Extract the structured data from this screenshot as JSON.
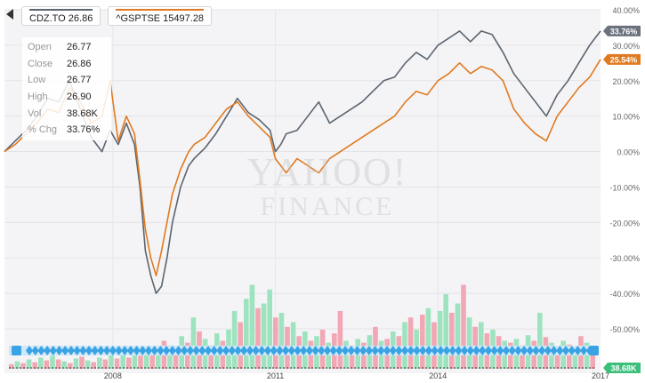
{
  "legend": {
    "cdz_label": "CDZ.TO 26.86",
    "gsptse_label": "^GSPTSE 15497.28"
  },
  "tooltip": {
    "rows": [
      {
        "label": "Open",
        "value": "26.77"
      },
      {
        "label": "Close",
        "value": "26.86"
      },
      {
        "label": "Low",
        "value": "26.77"
      },
      {
        "label": "High",
        "value": "26.90"
      },
      {
        "label": "Vol",
        "value": "38.68K"
      },
      {
        "label": "% Chg",
        "value": "33.76%"
      }
    ]
  },
  "watermark": {
    "line1": "YAHOO!",
    "line2": "FINANCE"
  },
  "colors": {
    "cdz": "#5b6470",
    "gsptse": "#e07a20",
    "vol_up": "#9ee3bf",
    "vol_down": "#f2a7b4",
    "navigator": "#3aa3e3"
  },
  "chart_data": {
    "type": "line",
    "title": "",
    "xlabel": "",
    "ylabel": "",
    "x_ticks": [
      "2008",
      "2011",
      "2014",
      "2017"
    ],
    "y_ticks": [
      "40.00%",
      "30.00%",
      "20.00%",
      "10.00%",
      "0.00%",
      "-10.00%",
      "-20.00%",
      "-30.00%",
      "-40.00%",
      "-50.00%"
    ],
    "ylim": [
      -50,
      40
    ],
    "xlim": [
      2006.0,
      2017.0
    ],
    "grid": true,
    "legend_position": "top-left",
    "series": [
      {
        "name": "CDZ.TO",
        "last_label": "33.76%",
        "x": [
          2006.0,
          2006.2,
          2006.4,
          2006.6,
          2006.8,
          2007.0,
          2007.2,
          2007.4,
          2007.6,
          2007.8,
          2007.95,
          2008.1,
          2008.25,
          2008.4,
          2008.5,
          2008.6,
          2008.7,
          2008.8,
          2008.9,
          2009.0,
          2009.1,
          2009.25,
          2009.4,
          2009.5,
          2009.7,
          2009.9,
          2010.1,
          2010.3,
          2010.5,
          2010.7,
          2010.9,
          2011.0,
          2011.1,
          2011.2,
          2011.4,
          2011.6,
          2011.8,
          2011.9,
          2012.0,
          2012.2,
          2012.4,
          2012.6,
          2012.8,
          2013.0,
          2013.2,
          2013.4,
          2013.6,
          2013.8,
          2014.0,
          2014.2,
          2014.4,
          2014.6,
          2014.8,
          2015.0,
          2015.2,
          2015.4,
          2015.6,
          2015.8,
          2016.0,
          2016.2,
          2016.4,
          2016.6,
          2016.8,
          2017.0
        ],
        "values": [
          0,
          3,
          6,
          10,
          15,
          14,
          20,
          12,
          4,
          0,
          6,
          2,
          8,
          2,
          -10,
          -28,
          -35,
          -40,
          -38,
          -30,
          -20,
          -10,
          -4,
          -2,
          1,
          5,
          10,
          15,
          11,
          9,
          6,
          0,
          2,
          5,
          6,
          10,
          14,
          11,
          8,
          10,
          12,
          14,
          17,
          20,
          21,
          25,
          28,
          26,
          30,
          32,
          34,
          31,
          34,
          33,
          28,
          22,
          18,
          14,
          10,
          16,
          20,
          25,
          30,
          34
        ]
      },
      {
        "name": "^GSPTSE",
        "last_label": "25.54%",
        "x": [
          2006.0,
          2006.2,
          2006.4,
          2006.6,
          2006.8,
          2007.0,
          2007.2,
          2007.4,
          2007.6,
          2007.8,
          2007.95,
          2008.1,
          2008.25,
          2008.4,
          2008.5,
          2008.6,
          2008.7,
          2008.8,
          2008.9,
          2009.0,
          2009.1,
          2009.25,
          2009.4,
          2009.5,
          2009.7,
          2009.9,
          2010.1,
          2010.3,
          2010.5,
          2010.7,
          2010.9,
          2011.0,
          2011.1,
          2011.2,
          2011.4,
          2011.6,
          2011.8,
          2011.9,
          2012.0,
          2012.2,
          2012.4,
          2012.6,
          2012.8,
          2013.0,
          2013.2,
          2013.4,
          2013.6,
          2013.8,
          2014.0,
          2014.2,
          2014.4,
          2014.6,
          2014.8,
          2015.0,
          2015.2,
          2015.4,
          2015.6,
          2015.8,
          2016.0,
          2016.2,
          2016.4,
          2016.6,
          2016.8,
          2017.0
        ],
        "values": [
          0,
          2,
          5,
          8,
          12,
          11,
          18,
          14,
          8,
          10,
          20,
          3,
          10,
          5,
          -8,
          -22,
          -30,
          -35,
          -28,
          -20,
          -12,
          -5,
          0,
          2,
          4,
          8,
          12,
          14,
          10,
          7,
          4,
          -2,
          -4,
          -6,
          -2,
          -4,
          -6,
          -4,
          -2,
          0,
          2,
          4,
          6,
          8,
          10,
          14,
          17,
          16,
          20,
          22,
          25,
          22,
          24,
          23,
          20,
          12,
          8,
          5,
          3,
          10,
          14,
          18,
          21,
          26
        ]
      }
    ],
    "volume": [
      {
        "d": "down",
        "v": 0.05
      },
      {
        "d": "up",
        "v": 0.08
      },
      {
        "d": "down",
        "v": 0.06
      },
      {
        "d": "up",
        "v": 0.1
      },
      {
        "d": "down",
        "v": 0.07
      },
      {
        "d": "up",
        "v": 0.12
      },
      {
        "d": "down",
        "v": 0.09
      },
      {
        "d": "up",
        "v": 0.14
      },
      {
        "d": "down",
        "v": 0.1
      },
      {
        "d": "up",
        "v": 0.08
      },
      {
        "d": "down",
        "v": 0.06
      },
      {
        "d": "up",
        "v": 0.11
      },
      {
        "d": "down",
        "v": 0.13
      },
      {
        "d": "up",
        "v": 0.09
      },
      {
        "d": "down",
        "v": 0.07
      },
      {
        "d": "up",
        "v": 0.12
      },
      {
        "d": "down",
        "v": 0.1
      },
      {
        "d": "up",
        "v": 0.15
      },
      {
        "d": "down",
        "v": 0.11
      },
      {
        "d": "up",
        "v": 0.16
      },
      {
        "d": "down",
        "v": 0.12
      },
      {
        "d": "up",
        "v": 0.18
      },
      {
        "d": "down",
        "v": 0.14
      },
      {
        "d": "up",
        "v": 0.2
      },
      {
        "d": "down",
        "v": 0.16
      },
      {
        "d": "up",
        "v": 0.22
      },
      {
        "d": "down",
        "v": 0.3
      },
      {
        "d": "up",
        "v": 0.25
      },
      {
        "d": "down",
        "v": 0.2
      },
      {
        "d": "up",
        "v": 0.35
      },
      {
        "d": "down",
        "v": 0.28
      },
      {
        "d": "up",
        "v": 0.55
      },
      {
        "d": "down",
        "v": 0.4
      },
      {
        "d": "up",
        "v": 0.32
      },
      {
        "d": "down",
        "v": 0.25
      },
      {
        "d": "up",
        "v": 0.38
      },
      {
        "d": "down",
        "v": 0.3
      },
      {
        "d": "up",
        "v": 0.42
      },
      {
        "d": "up",
        "v": 0.62
      },
      {
        "d": "down",
        "v": 0.5
      },
      {
        "d": "up",
        "v": 0.75
      },
      {
        "d": "up",
        "v": 0.9
      },
      {
        "d": "down",
        "v": 0.65
      },
      {
        "d": "up",
        "v": 0.7
      },
      {
        "d": "up",
        "v": 0.85
      },
      {
        "d": "down",
        "v": 0.55
      },
      {
        "d": "up",
        "v": 0.6
      },
      {
        "d": "down",
        "v": 0.45
      },
      {
        "d": "up",
        "v": 0.5
      },
      {
        "d": "down",
        "v": 0.35
      },
      {
        "d": "up",
        "v": 0.4
      },
      {
        "d": "down",
        "v": 0.3
      },
      {
        "d": "up",
        "v": 0.35
      },
      {
        "d": "down",
        "v": 0.42
      },
      {
        "d": "up",
        "v": 0.28
      },
      {
        "d": "down",
        "v": 0.38
      },
      {
        "d": "down",
        "v": 0.62
      },
      {
        "d": "up",
        "v": 0.3
      },
      {
        "d": "down",
        "v": 0.25
      },
      {
        "d": "up",
        "v": 0.32
      },
      {
        "d": "down",
        "v": 0.28
      },
      {
        "d": "up",
        "v": 0.36
      },
      {
        "d": "down",
        "v": 0.45
      },
      {
        "d": "up",
        "v": 0.3
      },
      {
        "d": "down",
        "v": 0.32
      },
      {
        "d": "up",
        "v": 0.4
      },
      {
        "d": "down",
        "v": 0.35
      },
      {
        "d": "up",
        "v": 0.5
      },
      {
        "d": "down",
        "v": 0.55
      },
      {
        "d": "up",
        "v": 0.42
      },
      {
        "d": "down",
        "v": 0.58
      },
      {
        "d": "up",
        "v": 0.65
      },
      {
        "d": "down",
        "v": 0.5
      },
      {
        "d": "up",
        "v": 0.62
      },
      {
        "d": "up",
        "v": 0.8
      },
      {
        "d": "down",
        "v": 0.6
      },
      {
        "d": "up",
        "v": 0.7
      },
      {
        "d": "down",
        "v": 0.9
      },
      {
        "d": "up",
        "v": 0.55
      },
      {
        "d": "down",
        "v": 0.45
      },
      {
        "d": "up",
        "v": 0.5
      },
      {
        "d": "down",
        "v": 0.38
      },
      {
        "d": "up",
        "v": 0.42
      },
      {
        "d": "down",
        "v": 0.35
      },
      {
        "d": "up",
        "v": 0.3
      },
      {
        "d": "down",
        "v": 0.28
      },
      {
        "d": "up",
        "v": 0.32
      },
      {
        "d": "down",
        "v": 0.25
      },
      {
        "d": "up",
        "v": 0.36
      },
      {
        "d": "down",
        "v": 0.3
      },
      {
        "d": "up",
        "v": 0.6
      },
      {
        "d": "down",
        "v": 0.34
      },
      {
        "d": "up",
        "v": 0.28
      },
      {
        "d": "down",
        "v": 0.22
      },
      {
        "d": "up",
        "v": 0.3
      },
      {
        "d": "down",
        "v": 0.26
      },
      {
        "d": "up",
        "v": 0.24
      },
      {
        "d": "down",
        "v": 0.35
      },
      {
        "d": "up",
        "v": 0.28
      },
      {
        "d": "down",
        "v": 0.2
      }
    ],
    "volume_last_label": "38.68K"
  }
}
